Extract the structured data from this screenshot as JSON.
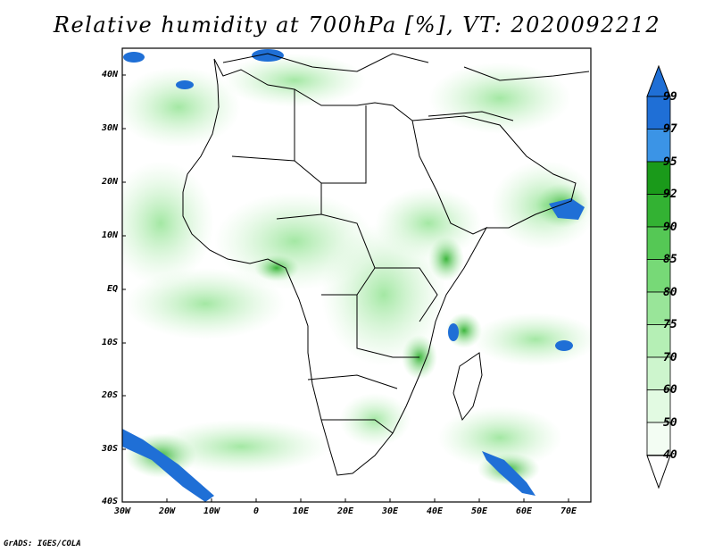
{
  "title": "Relative humidity at 700hPa [%], VT: 2020092212",
  "credit": "GrADS: IGES/COLA",
  "map": {
    "lat_labels": [
      "40N",
      "30N",
      "20N",
      "10N",
      "EQ",
      "10S",
      "20S",
      "30S",
      "40S"
    ],
    "lon_labels": [
      "30W",
      "20W",
      "10W",
      "0",
      "10E",
      "20E",
      "30E",
      "40E",
      "50E",
      "60E",
      "70E"
    ]
  },
  "colorbar": {
    "labels": [
      "99",
      "97",
      "95",
      "92",
      "90",
      "85",
      "80",
      "75",
      "70",
      "60",
      "50",
      "40"
    ],
    "colors": [
      "#1f6fd6",
      "#3b94e6",
      "#1a9a1a",
      "#33b233",
      "#55c855",
      "#77d977",
      "#99e599",
      "#b5efb5",
      "#cdf5cd",
      "#e2fae2",
      "#f3fdf3"
    ]
  }
}
